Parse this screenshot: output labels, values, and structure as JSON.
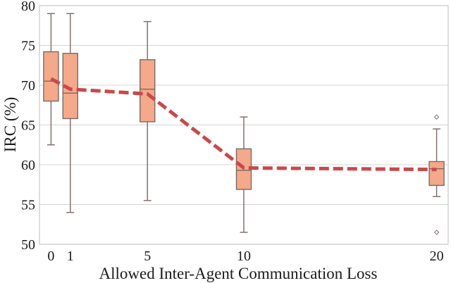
{
  "chart_data": {
    "type": "box",
    "xlabel": "Allowed Inter-Agent Communication Loss",
    "ylabel": "IRC (%)",
    "ylim": [
      50,
      80
    ],
    "yticks": [
      50,
      55,
      60,
      65,
      70,
      75,
      80
    ],
    "xlim": [
      -0.6,
      20.6
    ],
    "xticks": [
      0,
      1,
      5,
      10,
      20
    ],
    "grid": "horizontal",
    "boxes": [
      {
        "x": 0,
        "whisker_low": 62.5,
        "q1": 68.0,
        "median": 70.5,
        "q3": 74.2,
        "whisker_high": 79.0,
        "outliers": []
      },
      {
        "x": 1,
        "whisker_low": 54.0,
        "q1": 65.8,
        "median": 69.0,
        "q3": 74.0,
        "whisker_high": 79.0,
        "outliers": []
      },
      {
        "x": 5,
        "whisker_low": 55.5,
        "q1": 65.4,
        "median": 69.5,
        "q3": 73.2,
        "whisker_high": 78.0,
        "outliers": []
      },
      {
        "x": 10,
        "whisker_low": 51.5,
        "q1": 56.9,
        "median": 59.3,
        "q3": 62.0,
        "whisker_high": 66.0,
        "outliers": []
      },
      {
        "x": 20,
        "whisker_low": 56.0,
        "q1": 57.4,
        "median": 59.5,
        "q3": 60.4,
        "whisker_high": 64.5,
        "outliers": [
          66.0,
          51.5
        ]
      }
    ],
    "mean_line": {
      "x": [
        0,
        1,
        5,
        10,
        20
      ],
      "y": [
        70.8,
        69.5,
        68.9,
        59.6,
        59.4
      ]
    },
    "colors": {
      "box_fill": "#f4a98a",
      "box_edge": "#7a6a64",
      "mean_line": "#c8494b",
      "grid": "#d4d4d4",
      "spine": "#c9c9c9"
    }
  }
}
